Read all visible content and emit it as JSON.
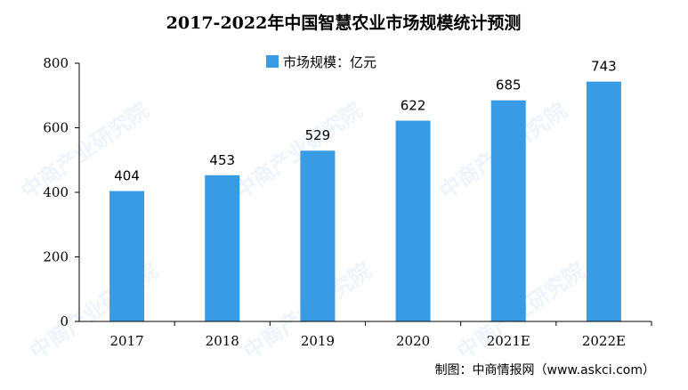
{
  "chart_data": {
    "type": "bar",
    "title": "2017-2022年中国智慧农业市场规模统计预测",
    "categories": [
      "2017",
      "2018",
      "2019",
      "2020",
      "2021E",
      "2022E"
    ],
    "series": [
      {
        "name": "市场规模：亿元",
        "values": [
          404,
          453,
          529,
          622,
          685,
          743
        ]
      }
    ],
    "data_labels": [
      "404",
      "453",
      "529",
      "622",
      "685",
      "743"
    ],
    "y_ticks": [
      "0",
      "200",
      "400",
      "600",
      "800"
    ],
    "ylim": [
      0,
      800
    ],
    "grid": false,
    "legend_position": "top-center",
    "bar_color": "#3a9be5",
    "source": "制图：中商情报网（www.askci.com）"
  },
  "watermark": "中商产业研究院"
}
